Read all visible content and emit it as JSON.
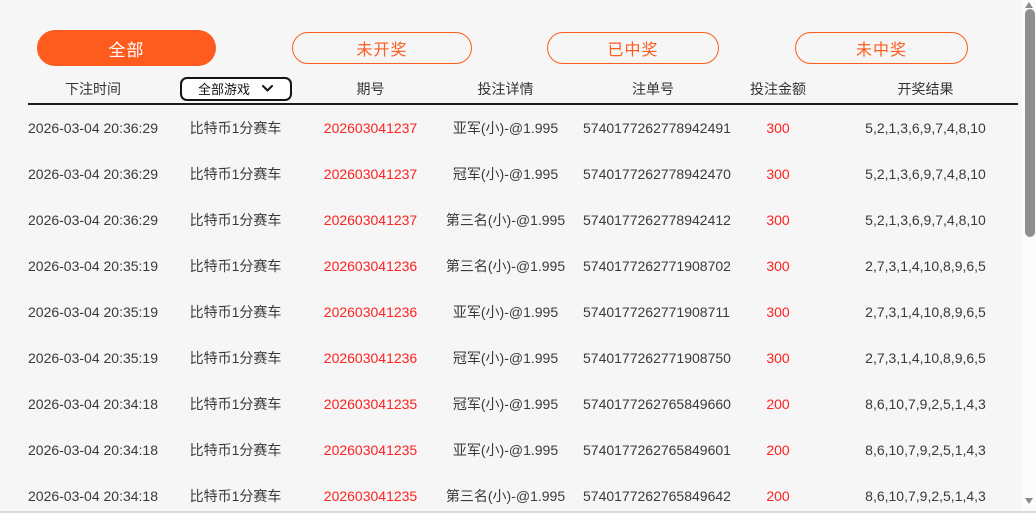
{
  "filters": [
    {
      "id": "all",
      "label": "全部",
      "active": true
    },
    {
      "id": "pending",
      "label": "未开奖",
      "active": false
    },
    {
      "id": "won",
      "label": "已中奖",
      "active": false
    },
    {
      "id": "lost",
      "label": "未中奖",
      "active": false
    }
  ],
  "game_select": {
    "value": "全部游戏"
  },
  "table": {
    "headers": {
      "time": "下注时间",
      "period": "期号",
      "detail": "投注详情",
      "order": "注单号",
      "amount": "投注金额",
      "result": "开奖结果"
    },
    "rows": [
      {
        "time": "2026-03-04 20:36:29",
        "game": "比特币1分赛车",
        "period": "202603041237",
        "detail": "亚军(小)-@1.995",
        "order": "5740177262778942491",
        "amount": "300",
        "result": "5,2,1,3,6,9,7,4,8,10"
      },
      {
        "time": "2026-03-04 20:36:29",
        "game": "比特币1分赛车",
        "period": "202603041237",
        "detail": "冠军(小)-@1.995",
        "order": "5740177262778942470",
        "amount": "300",
        "result": "5,2,1,3,6,9,7,4,8,10"
      },
      {
        "time": "2026-03-04 20:36:29",
        "game": "比特币1分赛车",
        "period": "202603041237",
        "detail": "第三名(小)-@1.995",
        "order": "5740177262778942412",
        "amount": "300",
        "result": "5,2,1,3,6,9,7,4,8,10"
      },
      {
        "time": "2026-03-04 20:35:19",
        "game": "比特币1分赛车",
        "period": "202603041236",
        "detail": "第三名(小)-@1.995",
        "order": "5740177262771908702",
        "amount": "300",
        "result": "2,7,3,1,4,10,8,9,6,5"
      },
      {
        "time": "2026-03-04 20:35:19",
        "game": "比特币1分赛车",
        "period": "202603041236",
        "detail": "亚军(小)-@1.995",
        "order": "5740177262771908711",
        "amount": "300",
        "result": "2,7,3,1,4,10,8,9,6,5"
      },
      {
        "time": "2026-03-04 20:35:19",
        "game": "比特币1分赛车",
        "period": "202603041236",
        "detail": "冠军(小)-@1.995",
        "order": "5740177262771908750",
        "amount": "300",
        "result": "2,7,3,1,4,10,8,9,6,5"
      },
      {
        "time": "2026-03-04 20:34:18",
        "game": "比特币1分赛车",
        "period": "202603041235",
        "detail": "冠军(小)-@1.995",
        "order": "5740177262765849660",
        "amount": "200",
        "result": "8,6,10,7,9,2,5,1,4,3"
      },
      {
        "time": "2026-03-04 20:34:18",
        "game": "比特币1分赛车",
        "period": "202603041235",
        "detail": "亚军(小)-@1.995",
        "order": "5740177262765849601",
        "amount": "200",
        "result": "8,6,10,7,9,2,5,1,4,3"
      },
      {
        "time": "2026-03-04 20:34:18",
        "game": "比特币1分赛车",
        "period": "202603041235",
        "detail": "第三名(小)-@1.995",
        "order": "5740177262765849642",
        "amount": "200",
        "result": "8,6,10,7,9,2,5,1,4,3"
      }
    ]
  },
  "colors": {
    "accent_orange": "#fd5c1e",
    "highlight_red": "#ff2222",
    "page_background": "#f5f6f5"
  }
}
